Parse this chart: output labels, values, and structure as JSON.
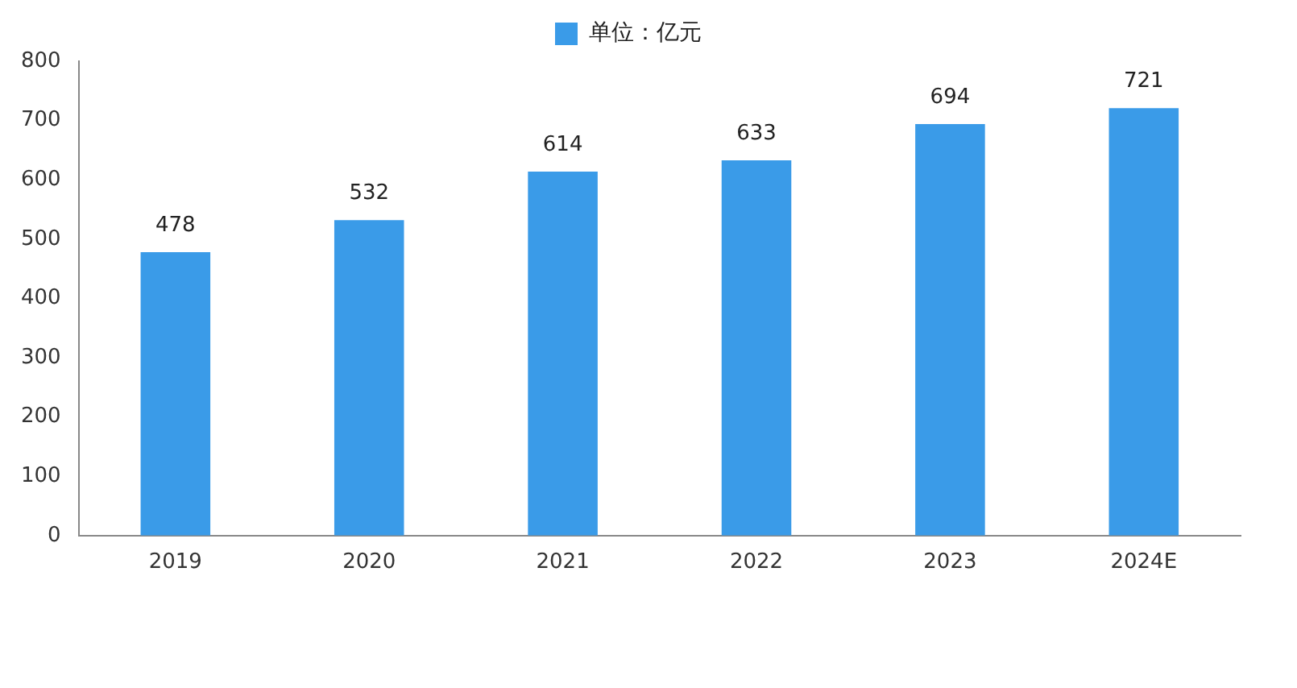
{
  "chart_data": {
    "type": "bar",
    "categories": [
      "2019",
      "2020",
      "2021",
      "2022",
      "2023",
      "2024E"
    ],
    "series": [
      {
        "name": "单位：亿元",
        "color": "#3a9be8",
        "values": [
          478,
          532,
          614,
          633,
          694,
          721
        ]
      }
    ],
    "ylim": [
      0,
      800
    ],
    "yticks": [
      0,
      100,
      200,
      300,
      400,
      500,
      600,
      700,
      800
    ],
    "grid": false,
    "legend": "top",
    "data_labels": true
  }
}
